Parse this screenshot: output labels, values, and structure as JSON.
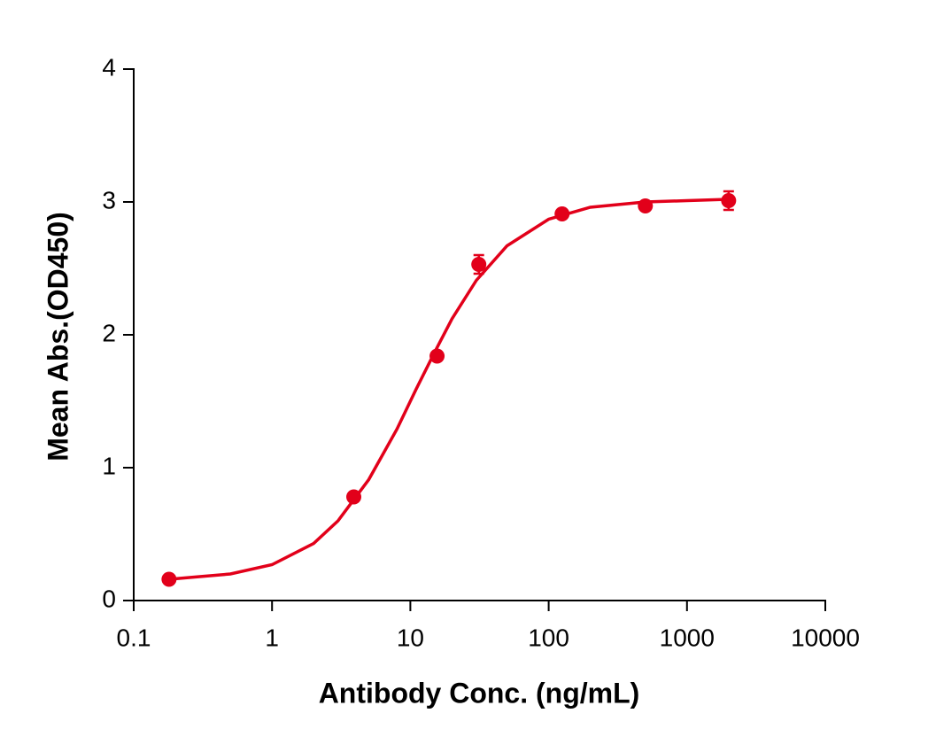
{
  "chart_data": {
    "type": "scatter",
    "xlabel": "Antibody Conc. (ng/mL)",
    "ylabel": "Mean Abs.(OD450)",
    "xscale": "log",
    "xlim": [
      0.1,
      10000
    ],
    "xticks": [
      0.1,
      1,
      10,
      100,
      1000,
      10000
    ],
    "ylim": [
      0,
      4
    ],
    "yticks": [
      0,
      1,
      2,
      3,
      4
    ],
    "grid": false,
    "series": [
      {
        "style": "points",
        "color": "#e2001a",
        "x": [
          0.18,
          3.9,
          15.6,
          31.25,
          125,
          500,
          2000
        ],
        "values": [
          0.16,
          0.78,
          1.84,
          2.53,
          2.91,
          2.97,
          3.01
        ],
        "errors": [
          0.02,
          0.02,
          0.03,
          0.07,
          0.03,
          0.03,
          0.07
        ]
      },
      {
        "style": "line",
        "color": "#e2001a",
        "x": [
          0.18,
          0.3,
          0.5,
          1,
          2,
          3,
          5,
          8,
          11,
          15,
          20,
          30,
          50,
          100,
          200,
          500,
          1000,
          2000
        ],
        "values": [
          0.16,
          0.18,
          0.2,
          0.27,
          0.43,
          0.6,
          0.91,
          1.29,
          1.59,
          1.87,
          2.12,
          2.41,
          2.67,
          2.87,
          2.96,
          3.0,
          3.01,
          3.02
        ]
      }
    ]
  }
}
